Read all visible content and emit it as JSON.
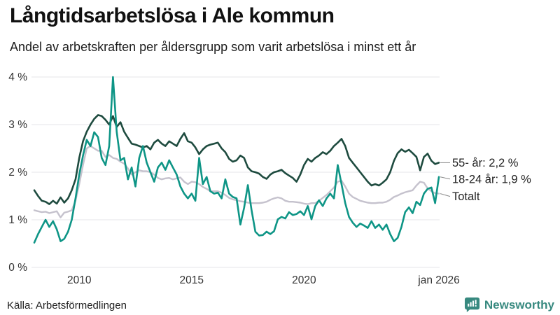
{
  "header": {
    "title": "Långtidsarbetslösa i Ale kommun",
    "subtitle": "Andel av arbetskraften per åldersgrupp som varit arbetslösa i minst ett år"
  },
  "footer": {
    "source": "Källa: Arbetsförmedlingen",
    "brand": "Newsworthy",
    "brand_color": "#37897f",
    "brand_icon": "bar-chart-speech-bubble-icon"
  },
  "colors": {
    "grid": "#e9e9ee",
    "axis_text": "#333333",
    "end_label_text": "#222222",
    "connector": "#8a8a8a"
  },
  "chart_data": {
    "type": "line",
    "title": "Långtidsarbetslösa i Ale kommun",
    "subtitle": "Andel av arbetskraften per åldersgrupp som varit arbetslösa i minst ett år",
    "xlabel": "",
    "ylabel": "",
    "grid": true,
    "legend_position": "right-of-line-ends",
    "x_start_year": 2008,
    "x_end_year": 2026,
    "x_step_months": 2,
    "ylim": [
      0,
      4
    ],
    "yticks": [
      {
        "value": 0,
        "label": "0 %"
      },
      {
        "value": 1,
        "label": "1 %"
      },
      {
        "value": 2,
        "label": "2 %"
      },
      {
        "value": 3,
        "label": "3 %"
      },
      {
        "value": 4,
        "label": "4 %"
      }
    ],
    "xticks": [
      {
        "year": 2010,
        "label": "2010"
      },
      {
        "year": 2015,
        "label": "2015"
      },
      {
        "year": 2020,
        "label": "2020"
      },
      {
        "year": 2026,
        "label": "jan 2026"
      }
    ],
    "series": [
      {
        "name": "Totalt",
        "end_label": "Totalt",
        "color": "#c5c2cd",
        "stroke_width": 2.4,
        "end_label_dy": 4,
        "values": [
          1.2,
          1.18,
          1.16,
          1.17,
          1.14,
          1.16,
          1.18,
          1.05,
          1.15,
          1.17,
          1.2,
          1.4,
          1.75,
          2.15,
          2.5,
          2.55,
          2.5,
          2.45,
          2.45,
          2.32,
          2.36,
          2.3,
          2.28,
          2.22,
          2.18,
          2.08,
          1.95,
          2.0,
          2.04,
          2.02,
          2.02,
          2.0,
          1.95,
          1.88,
          1.85,
          1.87,
          1.88,
          1.85,
          1.87,
          1.89,
          1.8,
          1.75,
          1.8,
          1.79,
          1.75,
          1.69,
          1.65,
          1.6,
          1.6,
          1.6,
          1.57,
          1.52,
          1.46,
          1.43,
          1.41,
          1.39,
          1.38,
          1.36,
          1.35,
          1.35,
          1.35,
          1.36,
          1.38,
          1.42,
          1.45,
          1.47,
          1.45,
          1.4,
          1.38,
          1.38,
          1.37,
          1.36,
          1.34,
          1.33,
          1.35,
          1.35,
          1.4,
          1.46,
          1.52,
          1.6,
          1.68,
          1.8,
          1.82,
          1.7,
          1.55,
          1.48,
          1.44,
          1.4,
          1.38,
          1.36,
          1.35,
          1.35,
          1.36,
          1.36,
          1.38,
          1.42,
          1.48,
          1.51,
          1.55,
          1.58,
          1.6,
          1.62,
          1.72,
          1.8,
          1.78,
          1.66,
          1.6,
          1.56,
          1.55
        ]
      },
      {
        "name": "55- år",
        "end_label": "55- år: 2,2 %",
        "color": "#1e4b3f",
        "stroke_width": 2.6,
        "end_label_dy": 0,
        "values": [
          1.62,
          1.5,
          1.4,
          1.38,
          1.33,
          1.4,
          1.34,
          1.47,
          1.36,
          1.45,
          1.62,
          1.85,
          2.3,
          2.65,
          2.85,
          3.0,
          3.12,
          3.2,
          3.18,
          3.1,
          3.0,
          3.18,
          2.95,
          3.05,
          2.85,
          2.72,
          2.6,
          2.58,
          2.55,
          2.52,
          2.55,
          2.48,
          2.62,
          2.68,
          2.6,
          2.55,
          2.65,
          2.6,
          2.55,
          2.7,
          2.82,
          2.65,
          2.62,
          2.52,
          2.38,
          2.48,
          2.55,
          2.58,
          2.6,
          2.62,
          2.5,
          2.42,
          2.28,
          2.22,
          2.25,
          2.35,
          2.3,
          2.1,
          2.02,
          2.0,
          1.97,
          1.9,
          1.86,
          1.95,
          2.0,
          2.02,
          2.05,
          1.98,
          1.93,
          1.88,
          1.8,
          1.95,
          2.15,
          2.28,
          2.22,
          2.3,
          2.35,
          2.42,
          2.38,
          2.45,
          2.55,
          2.62,
          2.7,
          2.55,
          2.3,
          2.2,
          2.1,
          2.0,
          1.9,
          1.8,
          1.72,
          1.75,
          1.72,
          1.78,
          1.85,
          2.0,
          2.24,
          2.4,
          2.48,
          2.43,
          2.47,
          2.4,
          2.32,
          2.04,
          2.32,
          2.39,
          2.24,
          2.17,
          2.2
        ]
      },
      {
        "name": "18-24 år",
        "end_label": "18-24 år: 1,9 %",
        "color": "#0e9586",
        "stroke_width": 2.6,
        "end_label_dy": 3,
        "values": [
          0.52,
          0.7,
          0.85,
          1.0,
          0.85,
          0.97,
          0.8,
          0.55,
          0.6,
          0.75,
          1.0,
          1.45,
          1.95,
          2.35,
          2.68,
          2.55,
          2.84,
          2.74,
          2.3,
          2.15,
          2.55,
          4.0,
          2.85,
          2.25,
          2.3,
          1.85,
          2.1,
          1.7,
          2.3,
          2.55,
          2.2,
          2.0,
          1.8,
          2.1,
          2.2,
          2.05,
          2.25,
          2.1,
          1.95,
          1.7,
          1.55,
          1.45,
          1.55,
          1.4,
          2.3,
          1.75,
          1.9,
          1.6,
          1.55,
          1.57,
          1.45,
          1.85,
          1.55,
          1.48,
          1.45,
          0.9,
          1.25,
          1.73,
          1.2,
          0.75,
          0.67,
          0.68,
          0.75,
          0.7,
          0.76,
          1.01,
          1.06,
          1.03,
          1.16,
          1.1,
          1.12,
          1.18,
          1.1,
          1.29,
          1.01,
          1.29,
          1.41,
          1.29,
          1.45,
          1.55,
          1.45,
          2.15,
          1.75,
          1.35,
          1.06,
          0.94,
          0.85,
          0.92,
          0.88,
          0.83,
          0.97,
          0.83,
          0.9,
          0.79,
          0.9,
          0.7,
          0.55,
          0.62,
          0.85,
          1.16,
          1.26,
          1.14,
          1.38,
          1.31,
          1.55,
          1.65,
          1.68,
          1.35,
          1.9
        ]
      }
    ]
  }
}
